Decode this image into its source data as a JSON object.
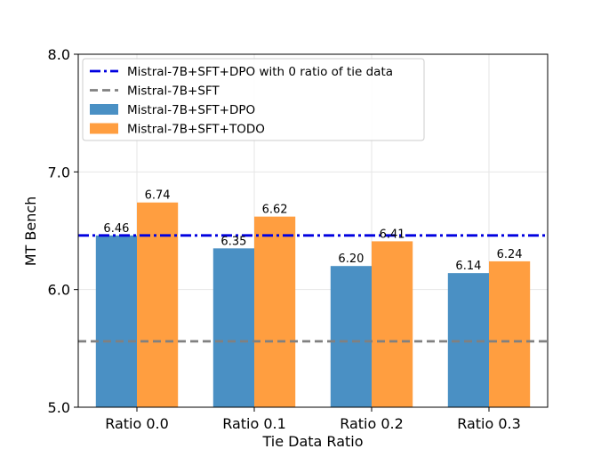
{
  "chart_data": {
    "type": "bar",
    "title": "",
    "xlabel": "Tie Data Ratio",
    "ylabel": "MT Bench",
    "ylim": [
      5.0,
      8.0
    ],
    "yticks": [
      "5.0",
      "6.0",
      "7.0",
      "8.0"
    ],
    "grid": true,
    "legend_position": "top-left",
    "categories": [
      "Ratio 0.0",
      "Ratio 0.1",
      "Ratio 0.2",
      "Ratio 0.3"
    ],
    "series": [
      {
        "name": "Mistral-7B+SFT+DPO",
        "color": "#4a90c4",
        "values": [
          6.46,
          6.35,
          6.2,
          6.14
        ],
        "labels": [
          "6.46",
          "6.35",
          "6.20",
          "6.14"
        ]
      },
      {
        "name": "Mistral-7B+SFT+TODO",
        "color": "#ff9e40",
        "values": [
          6.74,
          6.62,
          6.41,
          6.24
        ],
        "labels": [
          "6.74",
          "6.62",
          "6.41",
          "6.24"
        ]
      }
    ],
    "reference_lines": [
      {
        "name": "Mistral-7B+SFT+DPO with 0 ratio of tie data",
        "value": 6.46,
        "color": "#0000e0",
        "style": "dashdot"
      },
      {
        "name": "Mistral-7B+SFT",
        "value": 5.56,
        "color": "#808080",
        "style": "dashed"
      }
    ]
  }
}
